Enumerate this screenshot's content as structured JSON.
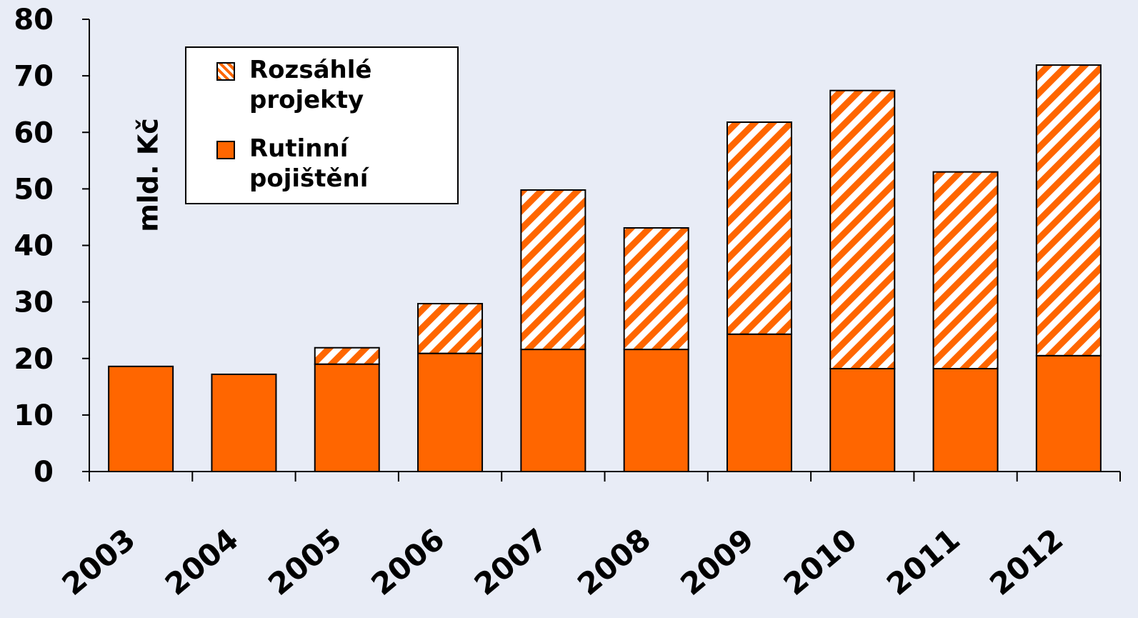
{
  "chart_data": {
    "type": "stacked_bar",
    "y_label": "mld. Kč",
    "categories": [
      "2003",
      "2004",
      "2005",
      "2006",
      "2007",
      "2008",
      "2009",
      "2010",
      "2011",
      "2012"
    ],
    "series": [
      {
        "name": "Rutinní pojištění",
        "color": "#ff6600",
        "values": [
          18.6,
          17.2,
          19.0,
          20.9,
          21.6,
          21.6,
          24.3,
          18.2,
          18.2,
          20.5
        ]
      },
      {
        "name": "Rozsáhlé projekty",
        "color": "#ff6600",
        "pattern": "hatch",
        "values": [
          0,
          0,
          2.9,
          8.8,
          28.2,
          21.5,
          37.5,
          49.2,
          34.8,
          51.4
        ]
      }
    ],
    "ylim": [
      0,
      80
    ],
    "yticks": [
      0,
      10,
      20,
      30,
      40,
      50,
      60,
      70,
      80
    ],
    "grid": false,
    "legend": "upper left"
  }
}
